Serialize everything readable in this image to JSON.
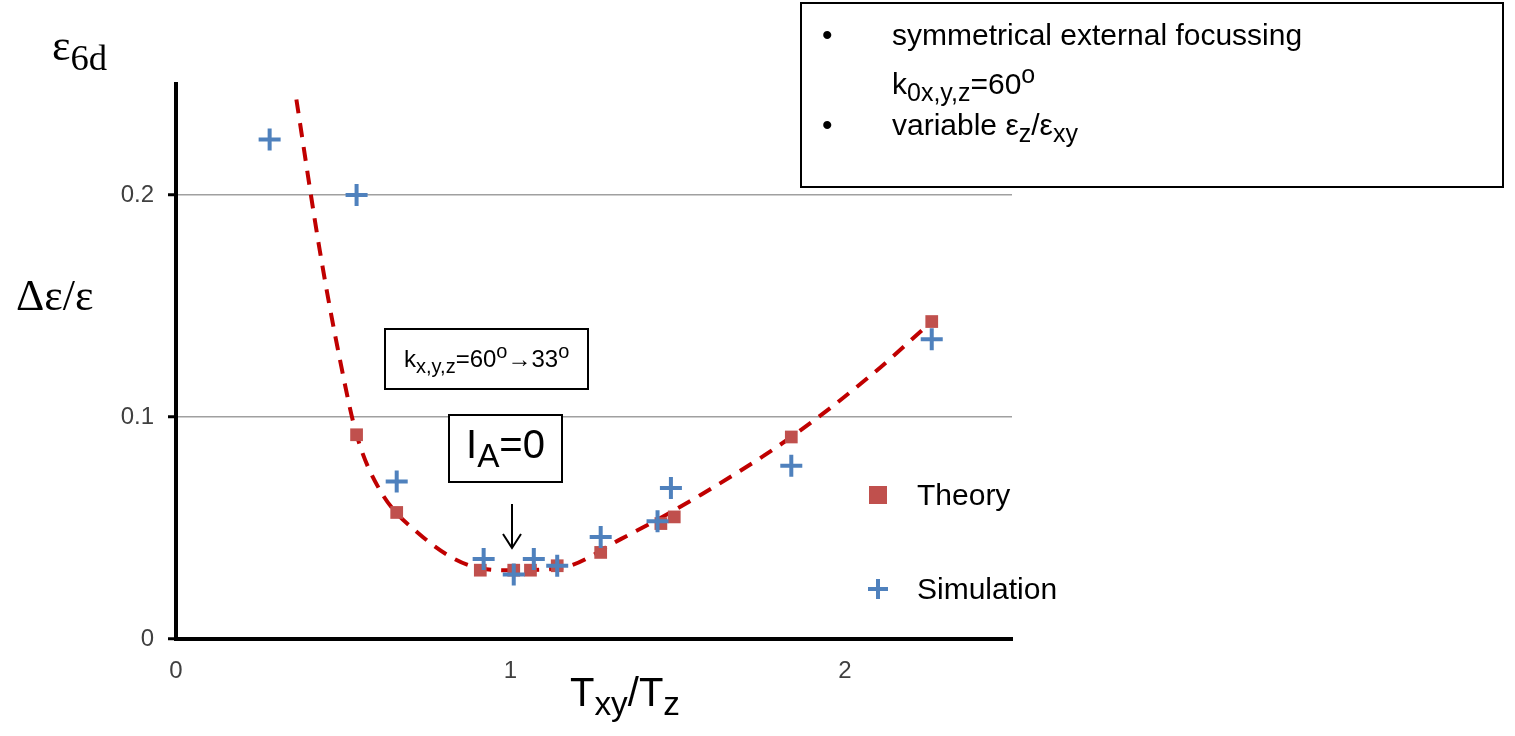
{
  "chart_data": {
    "type": "scatter",
    "xlabel": "T$_{xy}$/T$_{z}$",
    "ylabel": "Δε/ε",
    "annotations": [
      "ε$_{6d}$",
      "k$_{x,y,z}$=60$^{o}$→33$^{o}$",
      "I$_{A}$=0",
      "symmetrical external focussing",
      "k$_{0x,y,z}$=60$^{o}$",
      "variable ε$_{z}$/ε$_{xy}$",
      "•",
      "•"
    ],
    "xlim": [
      0,
      2.5
    ],
    "xticks": [
      0,
      1,
      2
    ],
    "ylim": [
      0,
      0.25
    ],
    "yticks": [
      0,
      0.1,
      0.2
    ],
    "grid": "y",
    "legend": "right",
    "series": [
      {
        "name": "Theory",
        "marker": "square",
        "color": "#c0504d",
        "x": [
          0.54,
          0.66,
          0.91,
          1.01,
          1.06,
          1.14,
          1.27,
          1.45,
          1.49,
          1.84,
          2.26
        ],
        "values": [
          0.092,
          0.057,
          0.031,
          0.031,
          0.031,
          0.033,
          0.039,
          0.052,
          0.055,
          0.091,
          0.143
        ]
      },
      {
        "name": "Simulation",
        "marker": "cross",
        "color": "#4f81bd",
        "x": [
          0.28,
          0.54,
          0.66,
          0.92,
          1.01,
          1.07,
          1.14,
          1.27,
          1.44,
          1.48,
          1.84,
          2.26
        ],
        "values": [
          0.225,
          0.2,
          0.071,
          0.036,
          0.029,
          0.036,
          0.033,
          0.046,
          0.053,
          0.068,
          0.078,
          0.135
        ]
      },
      {
        "type": "line",
        "marker": "none",
        "line_style": "dashed",
        "color": "#c00000",
        "x": [
          0.36,
          0.43,
          0.49,
          0.54,
          0.61,
          0.73,
          0.88,
          1.0,
          1.15,
          1.33,
          1.57,
          1.84,
          2.08,
          2.26
        ],
        "values": [
          0.243,
          0.175,
          0.126,
          0.092,
          0.067,
          0.047,
          0.033,
          0.031,
          0.032,
          0.045,
          0.065,
          0.091,
          0.119,
          0.143
        ]
      }
    ]
  }
}
